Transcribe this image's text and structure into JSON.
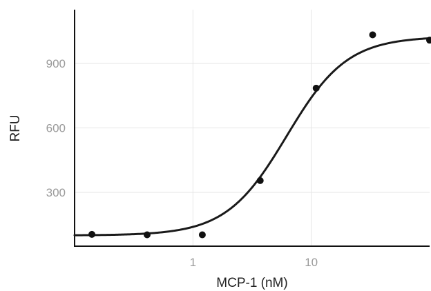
{
  "chart_data": {
    "type": "scatter",
    "xlabel": "MCP-1 (nM)",
    "ylabel": "RFU",
    "x_scale": "log",
    "xlim": [
      0.1,
      100
    ],
    "ylim": [
      50,
      1150
    ],
    "x_ticks": [
      1,
      10
    ],
    "x_tick_labels": [
      "1",
      "10"
    ],
    "y_ticks": [
      300,
      600,
      900
    ],
    "y_tick_labels": [
      "300",
      "600",
      "900"
    ],
    "grid": true,
    "series": [
      {
        "points": [
          {
            "x": 0.14,
            "y": 105
          },
          {
            "x": 0.41,
            "y": 103
          },
          {
            "x": 1.2,
            "y": 103
          },
          {
            "x": 3.7,
            "y": 355
          },
          {
            "x": 11,
            "y": 785
          },
          {
            "x": 33,
            "y": 1033
          },
          {
            "x": 100,
            "y": 1008
          }
        ]
      }
    ],
    "fit_curve": {
      "model": "4PL",
      "bottom": 100,
      "top": 1025,
      "ec50": 6.2,
      "hill": 1.7
    },
    "colors": {
      "points": "#111111",
      "curve": "#1a1a1a",
      "axis": "#111111",
      "grid": "#e6e6e6",
      "tick_text": "#9a9a9a"
    }
  }
}
